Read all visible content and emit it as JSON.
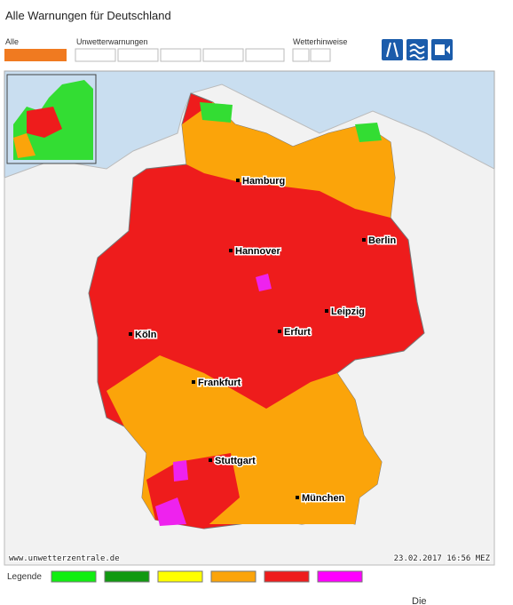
{
  "header": {
    "title": "Alle Warnungen für Deutschland"
  },
  "toolbar": {
    "groups": [
      "Alle",
      "Unwetterwarnungen",
      "Wetterhinweise"
    ]
  },
  "map": {
    "cities": [
      "Hamburg",
      "Hannover",
      "Berlin",
      "Leipzig",
      "Köln",
      "Erfurt",
      "Frankfurt",
      "Stuttgart",
      "München"
    ],
    "source": "www.unwetterzentrale.de",
    "timestamp": "23.02.2017 16:56 MEZ"
  },
  "legend": {
    "label": "Legende"
  },
  "footer": {
    "text": "Die"
  }
}
